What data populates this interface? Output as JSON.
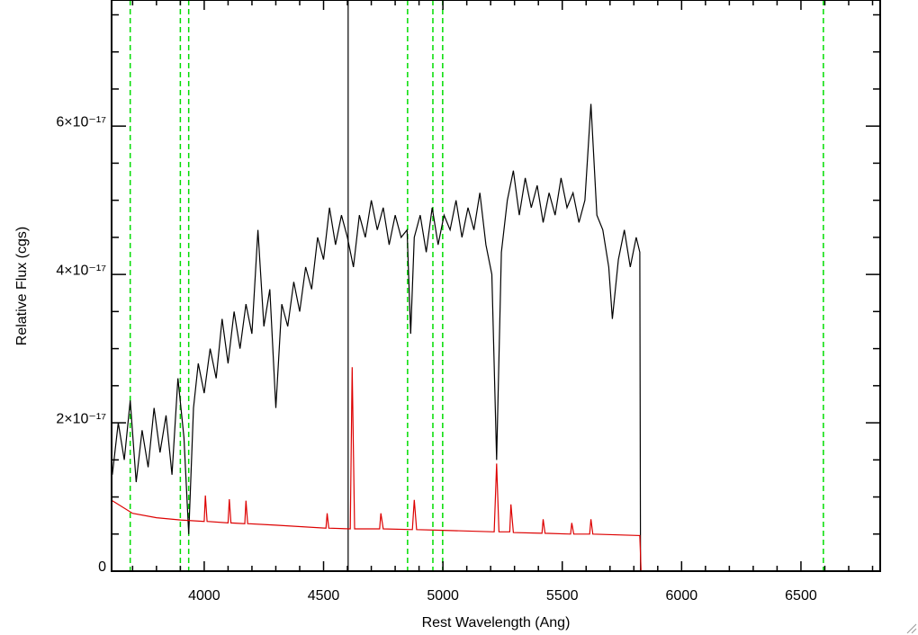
{
  "chart_data": {
    "type": "line",
    "xlabel": "Rest Wavelength (Ang)",
    "ylabel": "Relative Flux (cgs)",
    "xlim": [
      3612,
      6832
    ],
    "ylim": [
      0,
      7.7e-17
    ],
    "xticks": [
      4000,
      4500,
      5000,
      5500,
      6000,
      6500
    ],
    "yticks": [
      0,
      {
        "value": 2e-17,
        "label": "2×10⁻¹⁷"
      },
      {
        "value": 4e-17,
        "label": "4×10⁻¹⁷"
      },
      {
        "value": 6e-17,
        "label": "6×10⁻¹⁷"
      }
    ],
    "xminorticks": [
      3700,
      3800,
      3900,
      4100,
      4200,
      4300,
      4400,
      4600,
      4700,
      4800,
      4900,
      5100,
      5200,
      5300,
      5400,
      5600,
      5700,
      5800,
      5900,
      6100,
      6200,
      6300,
      6400,
      6600,
      6700,
      6800
    ],
    "yminorticks": [
      5e-18,
      1e-17,
      1.5e-17,
      2.5e-17,
      3e-17,
      3.5e-17,
      4.5e-17,
      5e-17,
      5.5e-17,
      6.5e-17,
      7e-17,
      7.5e-17
    ],
    "dashed_lines": {
      "color": "#00dd00",
      "x": [
        3690,
        3900,
        3935,
        4852,
        4958,
        4999,
        6594
      ]
    },
    "solid_lines": {
      "color": "#000000",
      "x": [
        4603
      ]
    },
    "series": [
      {
        "color": "#000000",
        "x": [
          3615,
          3640,
          3665,
          3690,
          3715,
          3740,
          3765,
          3790,
          3815,
          3840,
          3865,
          3890,
          3915,
          3935,
          3955,
          3975,
          4000,
          4025,
          4050,
          4075,
          4100,
          4125,
          4150,
          4175,
          4200,
          4225,
          4250,
          4275,
          4300,
          4325,
          4350,
          4375,
          4400,
          4425,
          4450,
          4475,
          4500,
          4525,
          4550,
          4575,
          4600,
          4625,
          4650,
          4675,
          4700,
          4725,
          4750,
          4775,
          4800,
          4825,
          4850,
          4865,
          4880,
          4905,
          4930,
          4955,
          4980,
          5005,
          5030,
          5055,
          5080,
          5105,
          5130,
          5155,
          5180,
          5205,
          5225,
          5245,
          5270,
          5295,
          5320,
          5345,
          5370,
          5395,
          5420,
          5445,
          5470,
          5495,
          5520,
          5545,
          5570,
          5595,
          5620,
          5645,
          5670,
          5695,
          5710,
          5735,
          5760,
          5785,
          5810,
          5825,
          5828
        ],
        "values": [
          1.3e-17,
          2e-17,
          1.5e-17,
          2.3e-17,
          1.2e-17,
          1.9e-17,
          1.4e-17,
          2.2e-17,
          1.6e-17,
          2.1e-17,
          1.3e-17,
          2.6e-17,
          1.8e-17,
          5e-18,
          2.2e-17,
          2.8e-17,
          2.4e-17,
          3e-17,
          2.6e-17,
          3.4e-17,
          2.8e-17,
          3.5e-17,
          3e-17,
          3.6e-17,
          3.2e-17,
          4.6e-17,
          3.3e-17,
          3.8e-17,
          2.2e-17,
          3.6e-17,
          3.3e-17,
          3.9e-17,
          3.5e-17,
          4.1e-17,
          3.8e-17,
          4.5e-17,
          4.2e-17,
          4.9e-17,
          4.4e-17,
          4.8e-17,
          4.5e-17,
          4.1e-17,
          4.8e-17,
          4.5e-17,
          5e-17,
          4.6e-17,
          4.9e-17,
          4.4e-17,
          4.8e-17,
          4.5e-17,
          4.6e-17,
          3.2e-17,
          4.5e-17,
          4.8e-17,
          4.3e-17,
          4.9e-17,
          4.4e-17,
          4.8e-17,
          4.6e-17,
          5e-17,
          4.5e-17,
          4.9e-17,
          4.6e-17,
          5.1e-17,
          4.4e-17,
          4e-17,
          1.5e-17,
          4.3e-17,
          5e-17,
          5.4e-17,
          4.8e-17,
          5.3e-17,
          4.9e-17,
          5.2e-17,
          4.7e-17,
          5.1e-17,
          4.8e-17,
          5.3e-17,
          4.9e-17,
          5.1e-17,
          4.7e-17,
          5e-17,
          6.3e-17,
          4.8e-17,
          4.6e-17,
          4.1e-17,
          3.4e-17,
          4.2e-17,
          4.6e-17,
          4.1e-17,
          4.5e-17,
          4.3e-17,
          0
        ]
      },
      {
        "color": "#dd0000",
        "x": [
          3615,
          3700,
          3800,
          3900,
          4000,
          4005,
          4012,
          4100,
          4105,
          4112,
          4170,
          4175,
          4182,
          4300,
          4510,
          4515,
          4522,
          4612,
          4620,
          4630,
          4735,
          4740,
          4750,
          4872,
          4880,
          4890,
          5000,
          5215,
          5225,
          5235,
          5280,
          5285,
          5295,
          5415,
          5420,
          5428,
          5535,
          5540,
          5548,
          5615,
          5620,
          5628,
          5825,
          5830,
          6832
        ],
        "values": [
          9.5e-18,
          7.8e-18,
          7.2e-18,
          6.9e-18,
          6.7e-18,
          1.02e-17,
          6.7e-18,
          6.5e-18,
          9.7e-18,
          6.5e-18,
          6.4e-18,
          9.5e-18,
          6.4e-18,
          6.2e-18,
          5.8e-18,
          7.8e-18,
          5.8e-18,
          5.7e-18,
          2.75e-17,
          5.7e-18,
          5.7e-18,
          7.8e-18,
          5.7e-18,
          5.6e-18,
          9.6e-18,
          5.6e-18,
          5.5e-18,
          5.3e-18,
          1.45e-17,
          5.3e-18,
          5.3e-18,
          9e-18,
          5.2e-18,
          5.1e-18,
          7e-18,
          5.1e-18,
          5e-18,
          6.5e-18,
          5e-18,
          5e-18,
          7e-18,
          5e-18,
          4.8e-18,
          0,
          0
        ]
      }
    ]
  }
}
